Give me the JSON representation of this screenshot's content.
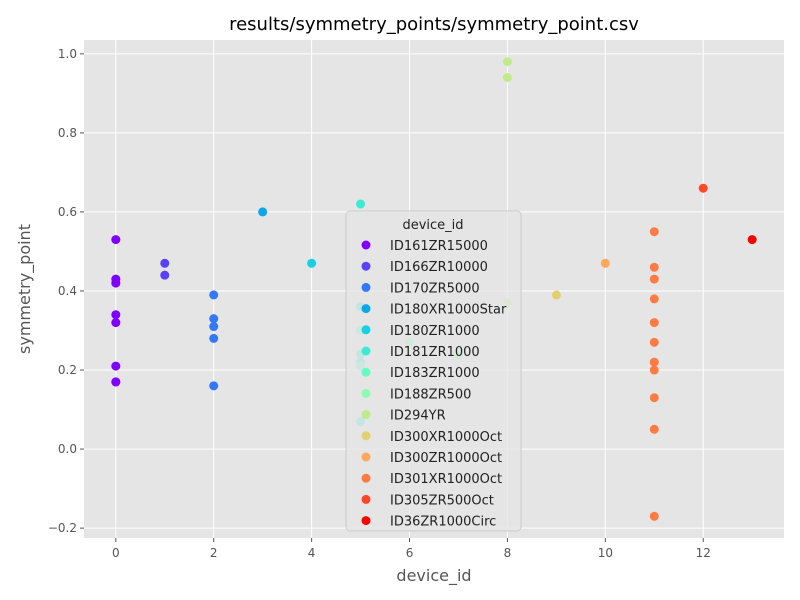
{
  "chart_data": {
    "type": "scatter",
    "title": "results/symmetry_points/symmetry_point.csv",
    "xlabel": "device_id",
    "ylabel": "symmetry_point",
    "xlim": [
      -0.65,
      13.65
    ],
    "ylim": [
      -0.225,
      1.035
    ],
    "xticks": [
      0,
      2,
      4,
      6,
      8,
      10,
      12
    ],
    "yticks": [
      -0.2,
      0.0,
      0.2,
      0.4,
      0.6,
      0.8,
      1.0
    ],
    "xtick_labels": [
      "0",
      "2",
      "4",
      "6",
      "8",
      "10",
      "12"
    ],
    "ytick_labels": [
      "−0.2",
      "0.0",
      "0.2",
      "0.4",
      "0.6",
      "0.8",
      "1.0"
    ],
    "grid": true,
    "background": "#e5e5e5",
    "legend": {
      "title": "device_id",
      "placement": "center"
    },
    "series": [
      {
        "name": "ID161ZR15000",
        "color": "#8000ff",
        "x": [
          0,
          0,
          0,
          0,
          0,
          0,
          0,
          0
        ],
        "y": [
          0.53,
          0.43,
          0.42,
          0.34,
          0.32,
          0.21,
          0.17,
          0.17
        ]
      },
      {
        "name": "ID166ZR10000",
        "color": "#5a40fb",
        "x": [
          1,
          1
        ],
        "y": [
          0.47,
          0.44
        ]
      },
      {
        "name": "ID170ZR5000",
        "color": "#3478f4",
        "x": [
          2,
          2,
          2,
          2,
          2
        ],
        "y": [
          0.39,
          0.33,
          0.31,
          0.28,
          0.16
        ]
      },
      {
        "name": "ID180XR1000Star",
        "color": "#0ca7ea",
        "x": [
          3
        ],
        "y": [
          0.6
        ]
      },
      {
        "name": "ID180ZR1000",
        "color": "#19cfe2",
        "x": [
          4
        ],
        "y": [
          0.47
        ]
      },
      {
        "name": "ID181ZR1000",
        "color": "#3cead4",
        "x": [
          5,
          5,
          5,
          5,
          5
        ],
        "y": [
          0.62,
          0.36,
          0.24,
          0.22,
          0.07
        ]
      },
      {
        "name": "ID183ZR1000",
        "color": "#66fbc3",
        "x": [
          5,
          5
        ],
        "y": [
          0.3,
          0.21
        ]
      },
      {
        "name": "ID188ZR500",
        "color": "#8efcae",
        "x": [
          6,
          7
        ],
        "y": [
          0.27,
          0.24
        ]
      },
      {
        "name": "ID294YR",
        "color": "#c0eb8c",
        "x": [
          8,
          8,
          8
        ],
        "y": [
          0.98,
          0.94,
          0.37
        ]
      },
      {
        "name": "ID300XR1000Oct",
        "color": "#e2cf71",
        "x": [
          9
        ],
        "y": [
          0.39
        ]
      },
      {
        "name": "ID300ZR1000Oct",
        "color": "#ffa75a",
        "x": [
          10
        ],
        "y": [
          0.47
        ]
      },
      {
        "name": "ID301XR1000Oct",
        "color": "#ff7b42",
        "x": [
          11,
          11,
          11,
          11,
          11,
          11,
          11,
          11,
          11,
          11,
          11
        ],
        "y": [
          0.55,
          0.46,
          0.43,
          0.38,
          0.32,
          0.27,
          0.22,
          0.2,
          0.13,
          0.05,
          -0.17
        ]
      },
      {
        "name": "ID305ZR500Oct",
        "color": "#ff4725",
        "x": [
          12
        ],
        "y": [
          0.66
        ]
      },
      {
        "name": "ID36ZR1000Circ",
        "color": "#ff0000",
        "x": [
          13
        ],
        "y": [
          0.53
        ]
      }
    ]
  }
}
